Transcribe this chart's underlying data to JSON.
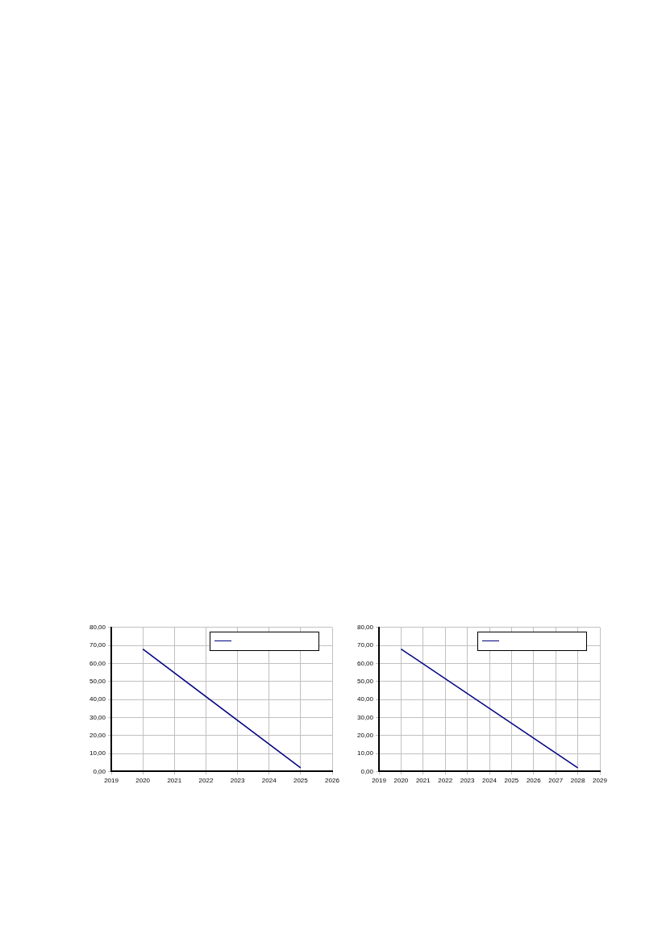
{
  "chart_data": [
    {
      "type": "line",
      "x": [
        2020,
        2025
      ],
      "series": [
        {
          "color": "#000080",
          "values": [
            68,
            2
          ]
        }
      ],
      "xlim": [
        2019,
        2026
      ],
      "xticks": [
        2019,
        2020,
        2021,
        2022,
        2023,
        2024,
        2025,
        2026
      ],
      "ylim": [
        0,
        80
      ],
      "yticks": [
        {
          "value": 0,
          "label": "0,00"
        },
        {
          "value": 10,
          "label": "10,00"
        },
        {
          "value": 20,
          "label": "20,00"
        },
        {
          "value": 30,
          "label": "30,00"
        },
        {
          "value": 40,
          "label": "40,00"
        },
        {
          "value": 50,
          "label": "50,00"
        },
        {
          "value": 60,
          "label": "60,00"
        },
        {
          "value": 70,
          "label": "70,00"
        },
        {
          "value": 80,
          "label": "80,00"
        }
      ],
      "grid": true,
      "marker": "none",
      "line_style": "solid"
    },
    {
      "type": "line",
      "x": [
        2020,
        2028
      ],
      "series": [
        {
          "color": "#000080",
          "values": [
            68,
            2
          ]
        }
      ],
      "xlim": [
        2019,
        2029
      ],
      "xticks": [
        2019,
        2020,
        2021,
        2022,
        2023,
        2024,
        2025,
        2026,
        2027,
        2028,
        2029
      ],
      "ylim": [
        0,
        80
      ],
      "yticks": [
        {
          "value": 0,
          "label": "0,00"
        },
        {
          "value": 10,
          "label": "10,00"
        },
        {
          "value": 20,
          "label": "20,00"
        },
        {
          "value": 30,
          "label": "30,00"
        },
        {
          "value": 40,
          "label": "40,00"
        },
        {
          "value": 50,
          "label": "50,00"
        },
        {
          "value": 60,
          "label": "60,00"
        },
        {
          "value": 70,
          "label": "70,00"
        },
        {
          "value": 80,
          "label": "80,00"
        }
      ],
      "grid": true,
      "marker": "none",
      "line_style": "solid"
    }
  ]
}
